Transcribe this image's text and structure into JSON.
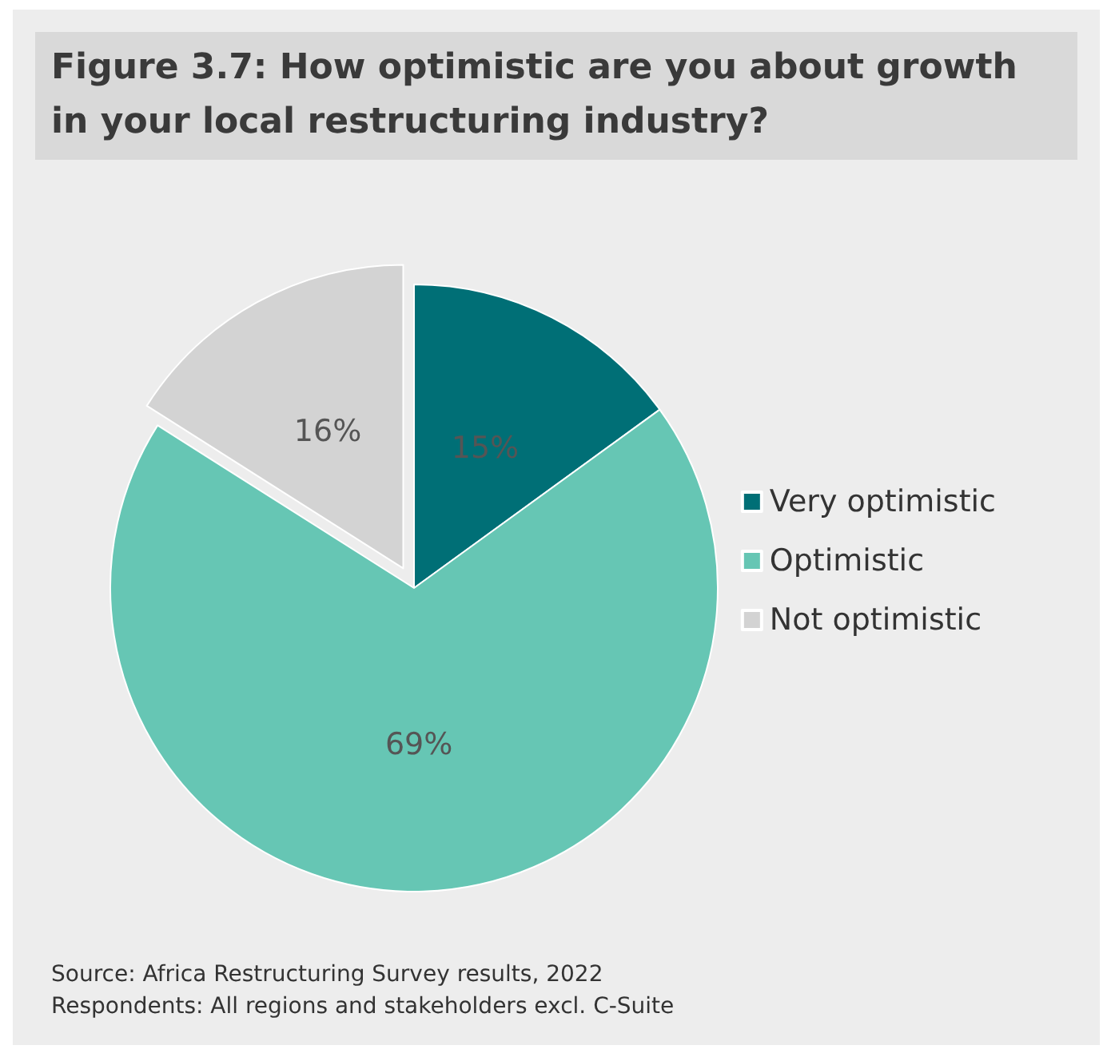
{
  "chart_data": {
    "type": "pie",
    "title": "Figure 3.7: How optimistic are you about growth in your local restructuring industry?",
    "categories": [
      "Very optimistic",
      "Optimistic",
      "Not optimistic"
    ],
    "values": [
      15,
      69,
      16
    ],
    "colors": [
      "#006f76",
      "#66c6b4",
      "#d3d3d3"
    ],
    "value_labels": [
      "15%",
      "69%",
      "16%"
    ],
    "legend": "right",
    "annotations": [
      "Source: Africa Restructuring Survey results, 2022",
      "Respondents: All regions and stakeholders excl. C-Suite"
    ]
  }
}
